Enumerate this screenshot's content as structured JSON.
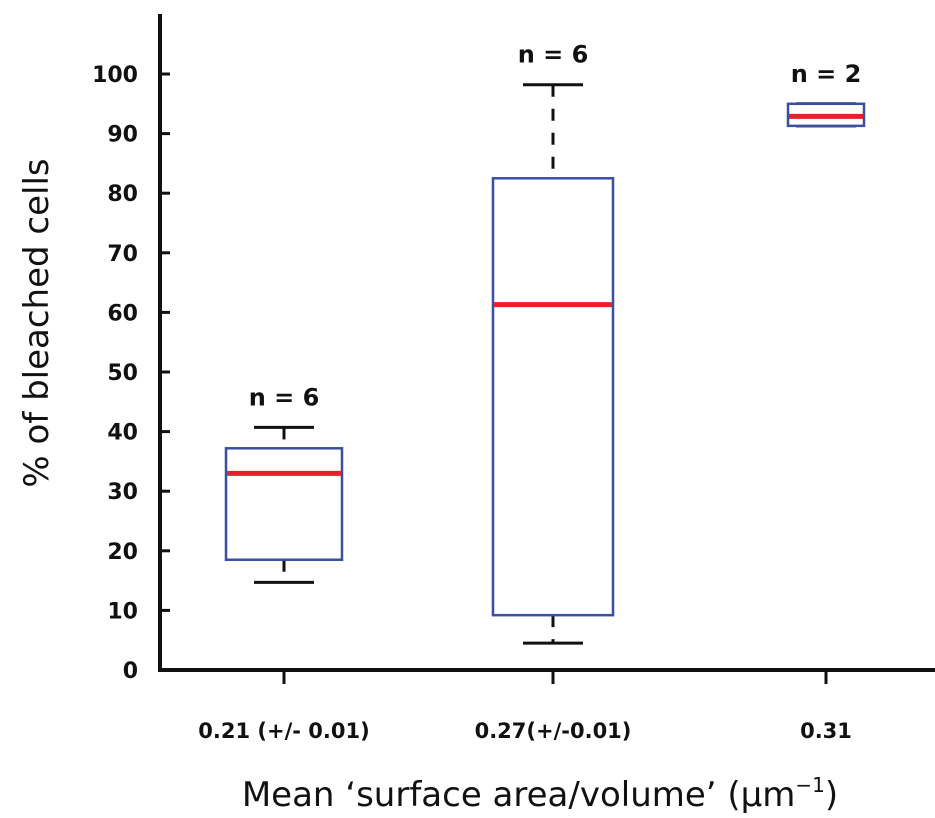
{
  "chart_data": {
    "type": "box",
    "title": "",
    "xlabel": "Mean ‘surface area/volume’ (μm",
    "xlabel_superscript": "−1",
    "xlabel_suffix": ")",
    "ylabel": "% of bleached cells",
    "ylim": [
      0,
      110
    ],
    "yticks": [
      0,
      10,
      20,
      30,
      40,
      50,
      60,
      70,
      80,
      90,
      100
    ],
    "categories": [
      "0.21 (+/- 0.01)",
      "0.27(+/-0.01)",
      "0.31"
    ],
    "boxes": [
      {
        "category": "0.21 (+/- 0.01)",
        "whisker_low": 14.7,
        "q1": 18.5,
        "median": 33.0,
        "q3": 37.2,
        "whisker_high": 40.7,
        "n_label": "n = 6"
      },
      {
        "category": "0.27(+/-0.01)",
        "whisker_low": 4.5,
        "q1": 9.2,
        "median": 61.3,
        "q3": 82.5,
        "whisker_high": 98.2,
        "n_label": "n = 6"
      },
      {
        "category": "0.31",
        "whisker_low": 91.3,
        "q1": 91.3,
        "median": 92.9,
        "q3": 95.0,
        "whisker_high": 95.0,
        "n_label": "n = 2"
      }
    ],
    "colors": {
      "box": "#3a4fa0",
      "median": "#e8202a",
      "whisker": "#111111",
      "axis": "#111111"
    },
    "grid": false,
    "legend": "none"
  }
}
